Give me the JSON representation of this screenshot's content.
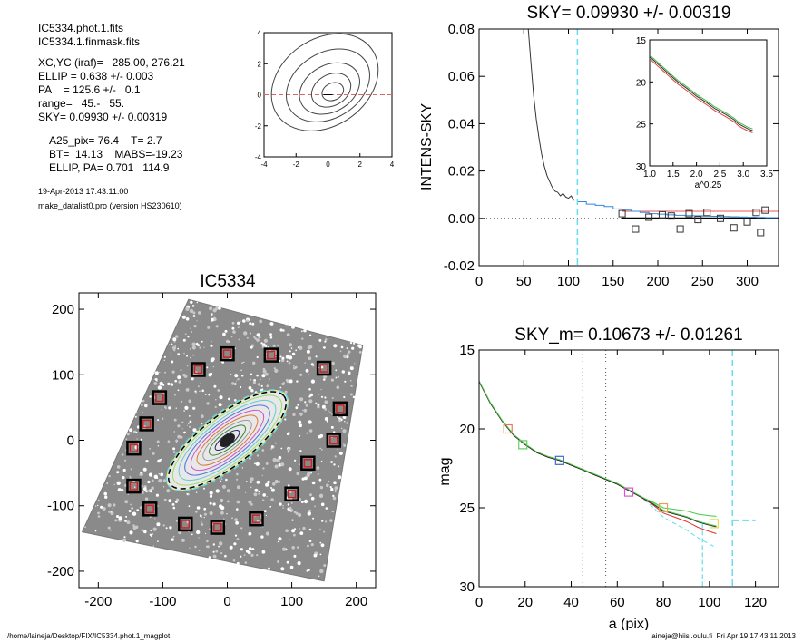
{
  "info": {
    "lines": [
      "IC5334.phot.1.fits",
      "IC5334.1.finmask.fits",
      "XC,YC (iraf)=   285.00, 276.21",
      "ELLIP = 0.638 +/- 0.003",
      "PA    = 125.6 +/-   0.1",
      "range=   45.-   55.",
      "SKY= 0.09930 +/- 0.00319",
      "A25_pix= 76.4    T= 2.7",
      "BT=  14.13    MABS=-19.23",
      "ELLIP, PA= 0.701   114.9"
    ],
    "date": "19-Apr-2013 17:43:11.00",
    "program": "make_datalist0.pro (version HS230610)"
  },
  "footer": {
    "left": "/home/laineja/Desktop/FIX/IC5334.phot.1_magplot",
    "right": "laineja@hiisi.oulu.fi  Fri Apr 19 17:43:11 2013"
  },
  "chart_data": [
    {
      "id": "contour",
      "type": "contour",
      "xticks": [
        "-4",
        "-2",
        "0",
        "2",
        "4"
      ],
      "yticks": [
        "-4",
        "-2",
        "0",
        "2",
        "4"
      ],
      "xlim": [
        -4,
        4
      ],
      "ylim": [
        -4,
        4
      ],
      "contours": [
        {
          "cx": 0.3,
          "cy": 0.2,
          "rx": 0.7,
          "ry": 0.55,
          "rot": -25
        },
        {
          "cx": 0.2,
          "cy": 0.3,
          "rx": 1.3,
          "ry": 1.0,
          "rot": -30
        },
        {
          "cx": 0.1,
          "cy": 0.4,
          "rx": 2.0,
          "ry": 1.5,
          "rot": -30
        },
        {
          "cx": 0.0,
          "cy": 0.6,
          "rx": 2.8,
          "ry": 2.1,
          "rot": -32
        },
        {
          "cx": -0.2,
          "cy": 0.8,
          "rx": 3.6,
          "ry": 2.8,
          "rot": -35
        }
      ],
      "center": [
        0,
        0
      ],
      "line_color": "#444444",
      "cross_color": "#e06666"
    },
    {
      "id": "sky",
      "type": "line",
      "title": "SKY= 0.09930 +/- 0.00319",
      "ylabel": "INTENS-SKY",
      "xlim": [
        0,
        335
      ],
      "ylim": [
        -0.02,
        0.08
      ],
      "xticks": [
        0,
        50,
        100,
        150,
        200,
        250,
        300
      ],
      "yticks": [
        "-0.02",
        "0.00",
        "0.02",
        "0.04",
        "0.06",
        "0.08"
      ],
      "profile_x": [
        55,
        58,
        61,
        64,
        67,
        70,
        73,
        76,
        79,
        82,
        85,
        88,
        91,
        94,
        97,
        100,
        103,
        106
      ],
      "profile_y": [
        0.08,
        0.066,
        0.052,
        0.042,
        0.034,
        0.027,
        0.022,
        0.018,
        0.0155,
        0.013,
        0.0115,
        0.011,
        0.0095,
        0.0105,
        0.009,
        0.0085,
        0.0095,
        0.0075
      ],
      "steps_x": [
        110,
        120,
        130,
        140,
        150,
        160,
        170,
        180,
        190,
        200,
        210,
        220,
        230,
        240,
        250,
        260,
        270,
        280,
        290,
        300,
        310,
        320,
        330
      ],
      "steps_y": [
        0.007,
        0.006,
        0.0055,
        0.005,
        0.004,
        0.0035,
        0.003,
        0.0025,
        0.002,
        0.0018,
        0.0015,
        0.0013,
        0.0012,
        0.0011,
        0.001,
        0.0009,
        0.0008,
        0.0007,
        0.0006,
        0.0005,
        0.0004,
        0.0003,
        0.0003
      ],
      "squares": [
        [
          160,
          0.002
        ],
        [
          175,
          -0.0045
        ],
        [
          190,
          0.0005
        ],
        [
          205,
          0.0015
        ],
        [
          215,
          0.001
        ],
        [
          225,
          -0.0045
        ],
        [
          235,
          0.002
        ],
        [
          245,
          -0.0005
        ],
        [
          255,
          0.0025
        ],
        [
          270,
          0.0
        ],
        [
          285,
          -0.004
        ],
        [
          300,
          -0.0015
        ],
        [
          310,
          0.0025
        ],
        [
          320,
          0.0035
        ],
        [
          315,
          -0.006
        ]
      ],
      "sky_level": 0.0,
      "red_level": 0.003,
      "green_level": -0.0045,
      "vline_x": 110,
      "inset": {
        "xlabel": "a^0.25",
        "xlim": [
          1.0,
          3.5
        ],
        "ylim": [
          15,
          30
        ],
        "xticks": [
          "1.0",
          "1.5",
          "2.0",
          "2.5",
          "3.0",
          "3.5"
        ],
        "yticks": [
          "15",
          "20",
          "25",
          "30"
        ],
        "x": [
          1.0,
          1.2,
          1.4,
          1.6,
          1.8,
          2.0,
          2.2,
          2.4,
          2.6,
          2.8,
          2.9,
          3.0,
          3.1,
          3.2
        ],
        "y": [
          17.0,
          18.0,
          19.0,
          20.0,
          20.8,
          21.7,
          22.4,
          23.2,
          23.8,
          24.5,
          25.0,
          25.3,
          25.6,
          25.8
        ]
      }
    },
    {
      "id": "image",
      "type": "scatter",
      "title": "IC5334",
      "xlim": [
        -230,
        230
      ],
      "ylim": [
        -225,
        225
      ],
      "xticks": [
        -200,
        -100,
        0,
        100,
        200
      ],
      "yticks": [
        -200,
        -100,
        0,
        100,
        200
      ],
      "sky_boxes": [
        [
          -45,
          108
        ],
        [
          0,
          132
        ],
        [
          68,
          130
        ],
        [
          150,
          110
        ],
        [
          -105,
          65
        ],
        [
          175,
          48
        ],
        [
          -125,
          25
        ],
        [
          165,
          0
        ],
        [
          -145,
          -12
        ],
        [
          125,
          -35
        ],
        [
          -145,
          -70
        ],
        [
          100,
          -82
        ],
        [
          -120,
          -105
        ],
        [
          45,
          -120
        ],
        [
          -65,
          -128
        ],
        [
          -15,
          -133
        ]
      ],
      "ellipse": {
        "cx": 0,
        "cy": 0,
        "a": 115,
        "b": 40,
        "rot": 38
      }
    },
    {
      "id": "mag",
      "type": "line",
      "title": "SKY_m=  0.10673 +/- 0.01261",
      "xlabel": "a (pix)",
      "ylabel": "mag",
      "xlim": [
        0,
        130
      ],
      "ylim": [
        30,
        15
      ],
      "xticks": [
        0,
        20,
        40,
        60,
        80,
        100,
        120
      ],
      "yticks": [
        15,
        20,
        25,
        30
      ],
      "x": [
        0,
        5,
        10,
        15,
        20,
        25,
        30,
        35,
        40,
        45,
        50,
        55,
        60,
        65,
        70,
        75,
        80,
        85,
        90,
        95,
        100,
        103
      ],
      "y": [
        17.0,
        18.4,
        19.5,
        20.4,
        21.0,
        21.5,
        21.8,
        22.0,
        22.3,
        22.6,
        22.9,
        23.2,
        23.5,
        23.9,
        24.3,
        24.7,
        25.2,
        25.4,
        25.6,
        25.9,
        26.1,
        26.2
      ],
      "markers": [
        {
          "x": 12.5,
          "y": 20.0,
          "color": "#e87a5a"
        },
        {
          "x": 19,
          "y": 21.0,
          "color": "#66cc66"
        },
        {
          "x": 35,
          "y": 22.0,
          "color": "#4466cc"
        },
        {
          "x": 65,
          "y": 24.0,
          "color": "#dd55cc"
        },
        {
          "x": 80,
          "y": 25.0,
          "color": "#e8a060"
        },
        {
          "x": 102,
          "y": 26.0,
          "color": "#dddd55"
        }
      ],
      "dotted_x": [
        45,
        55
      ],
      "vline_x": 110,
      "hline_y": 25.8,
      "hline_x": [
        110,
        120
      ]
    }
  ]
}
